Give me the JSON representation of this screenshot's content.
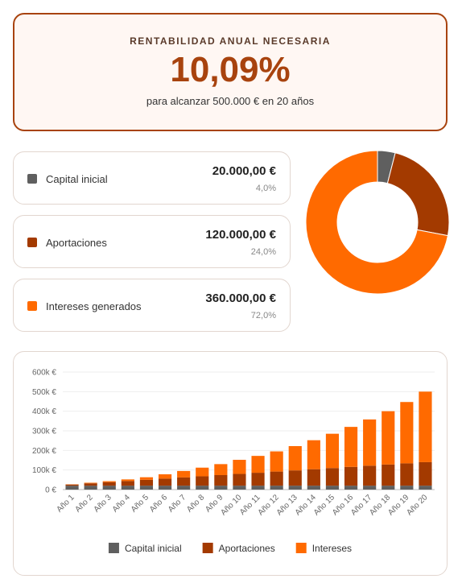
{
  "header": {
    "label": "RENTABILIDAD ANUAL NECESARIA",
    "value": "10,09%",
    "subtitle": "para alcanzar 500.000 € en 20 años"
  },
  "cards": [
    {
      "name": "Capital inicial",
      "amount": "20.000,00 €",
      "percent": "4,0%"
    },
    {
      "name": "Aportaciones",
      "amount": "120.000,00 €",
      "percent": "24,0%"
    },
    {
      "name": "Intereses generados",
      "amount": "360.000,00 €",
      "percent": "72,0%"
    }
  ],
  "chart_data": [
    {
      "type": "pie",
      "donut": true,
      "values": [
        4,
        24,
        72
      ],
      "colors": [
        "#5f5f5f",
        "#a33a00",
        "#ff6a00"
      ]
    },
    {
      "type": "bar",
      "stacked": true,
      "grid": true,
      "legend": "bottom",
      "categories": [
        "Año 1",
        "Año 2",
        "Año 3",
        "Año 4",
        "Año 5",
        "Año 6",
        "Año 7",
        "Año 8",
        "Año 9",
        "Año 10",
        "Año 11",
        "Año 12",
        "Año 13",
        "Año 14",
        "Año 15",
        "Año 16",
        "Año 17",
        "Año 18",
        "Año 19",
        "Año 20"
      ],
      "series": [
        {
          "name": "Capital inicial",
          "color": "#5f5f5f",
          "values": [
            20000,
            20000,
            20000,
            20000,
            20000,
            20000,
            20000,
            20000,
            20000,
            20000,
            20000,
            20000,
            20000,
            20000,
            20000,
            20000,
            20000,
            20000,
            20000,
            20000
          ]
        },
        {
          "name": "Aportaciones",
          "color": "#a33a00",
          "values": [
            6000,
            12000,
            18000,
            24000,
            30000,
            36000,
            42000,
            48000,
            54000,
            60000,
            66000,
            72000,
            78000,
            84000,
            90000,
            96000,
            102000,
            108000,
            114000,
            120000
          ]
        },
        {
          "name": "Intereses",
          "color": "#ff6a00",
          "values": [
            1000,
            3000,
            5000,
            8000,
            13000,
            22000,
            33000,
            44000,
            56000,
            72000,
            86000,
            103000,
            124000,
            148000,
            175000,
            204000,
            236000,
            272000,
            313000,
            360000
          ]
        }
      ],
      "ylim": [
        0,
        600000
      ],
      "yticks": [
        {
          "value": 0,
          "label": "0 €"
        },
        {
          "value": 100000,
          "label": "100k €"
        },
        {
          "value": 200000,
          "label": "200k €"
        },
        {
          "value": 300000,
          "label": "300k €"
        },
        {
          "value": 400000,
          "label": "400k €"
        },
        {
          "value": 500000,
          "label": "500k €"
        },
        {
          "value": 600000,
          "label": "600k €"
        }
      ]
    }
  ]
}
